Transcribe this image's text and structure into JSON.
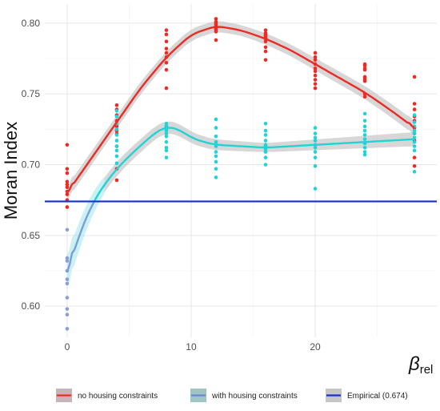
{
  "chart_data": {
    "type": "scatter",
    "title": "",
    "ylabel": "Moran Index",
    "xlabel_main": "β",
    "xlabel_sub": "rel",
    "xlim": [
      -1.8,
      29.8
    ],
    "ylim": [
      0.578,
      0.8135
    ],
    "x_ticks": [
      0,
      10,
      20
    ],
    "x_tick_labels": [
      "0",
      "10",
      "20"
    ],
    "y_ticks": [
      0.6,
      0.65,
      0.7,
      0.75,
      0.8
    ],
    "y_tick_labels": [
      "0.60",
      "0.65",
      "0.70",
      "0.75",
      "0.80"
    ],
    "grid": true,
    "legend_position": "bottom",
    "series": [
      {
        "name": "no housing constraints",
        "point_color": "#ee2a24",
        "line_color": "#ee2a24",
        "legend_swatch": "#c8b4b8",
        "points": [
          [
            0,
            0.714
          ],
          [
            0,
            0.697
          ],
          [
            0,
            0.694
          ],
          [
            0,
            0.688
          ],
          [
            0,
            0.686
          ],
          [
            0,
            0.684
          ],
          [
            0,
            0.681
          ],
          [
            0,
            0.679
          ],
          [
            0,
            0.675
          ],
          [
            0,
            0.67
          ],
          [
            4,
            0.742
          ],
          [
            4,
            0.739
          ],
          [
            4,
            0.735
          ],
          [
            4,
            0.731
          ],
          [
            4,
            0.727
          ],
          [
            4,
            0.724
          ],
          [
            4,
            0.722
          ],
          [
            4,
            0.713
          ],
          [
            4,
            0.697
          ],
          [
            4,
            0.689
          ],
          [
            8,
            0.795
          ],
          [
            8,
            0.792
          ],
          [
            8,
            0.787
          ],
          [
            8,
            0.782
          ],
          [
            8,
            0.779
          ],
          [
            8,
            0.776
          ],
          [
            8,
            0.772
          ],
          [
            8,
            0.767
          ],
          [
            8,
            0.754
          ],
          [
            8,
            0.727
          ],
          [
            12,
            0.803
          ],
          [
            12,
            0.801
          ],
          [
            12,
            0.8
          ],
          [
            12,
            0.799
          ],
          [
            12,
            0.798
          ],
          [
            12,
            0.797
          ],
          [
            12,
            0.796
          ],
          [
            12,
            0.795
          ],
          [
            12,
            0.794
          ],
          [
            12,
            0.788
          ],
          [
            16,
            0.795
          ],
          [
            16,
            0.793
          ],
          [
            16,
            0.792
          ],
          [
            16,
            0.791
          ],
          [
            16,
            0.79
          ],
          [
            16,
            0.789
          ],
          [
            16,
            0.787
          ],
          [
            16,
            0.783
          ],
          [
            16,
            0.78
          ],
          [
            16,
            0.774
          ],
          [
            20,
            0.779
          ],
          [
            20,
            0.776
          ],
          [
            20,
            0.774
          ],
          [
            20,
            0.771
          ],
          [
            20,
            0.768
          ],
          [
            20,
            0.766
          ],
          [
            20,
            0.763
          ],
          [
            20,
            0.76
          ],
          [
            20,
            0.757
          ],
          [
            20,
            0.754
          ],
          [
            24,
            0.771
          ],
          [
            24,
            0.77
          ],
          [
            24,
            0.768
          ],
          [
            24,
            0.767
          ],
          [
            24,
            0.762
          ],
          [
            24,
            0.761
          ],
          [
            24,
            0.76
          ],
          [
            24,
            0.759
          ],
          [
            24,
            0.75
          ],
          [
            24,
            0.748
          ],
          [
            28,
            0.762
          ],
          [
            28,
            0.743
          ],
          [
            28,
            0.739
          ],
          [
            28,
            0.734
          ],
          [
            28,
            0.731
          ],
          [
            28,
            0.726
          ],
          [
            28,
            0.722
          ],
          [
            28,
            0.717
          ],
          [
            28,
            0.705
          ],
          [
            28,
            0.699
          ]
        ],
        "smooth": [
          [
            0,
            0.68
          ],
          [
            2,
            0.705
          ],
          [
            4,
            0.73
          ],
          [
            6,
            0.755
          ],
          [
            8,
            0.776
          ],
          [
            10,
            0.792
          ],
          [
            12,
            0.798
          ],
          [
            14,
            0.795
          ],
          [
            16,
            0.789
          ],
          [
            18,
            0.781
          ],
          [
            20,
            0.771
          ],
          [
            22,
            0.761
          ],
          [
            24,
            0.751
          ],
          [
            26,
            0.739
          ],
          [
            28,
            0.726
          ]
        ]
      },
      {
        "name": "with housing constraints",
        "point_color": "#22d3d6",
        "line_color": "#22d3d6",
        "low_point_color": "#8a9fd6",
        "low_line_color": "#7f9cd8",
        "legend_swatch": "#9ec4c4",
        "points": [
          [
            0,
            0.654
          ],
          [
            0,
            0.634
          ],
          [
            0,
            0.632
          ],
          [
            0,
            0.625
          ],
          [
            0,
            0.619
          ],
          [
            0,
            0.616
          ],
          [
            0,
            0.606
          ],
          [
            0,
            0.598
          ],
          [
            0,
            0.594
          ],
          [
            0,
            0.584
          ],
          [
            4,
            0.738
          ],
          [
            4,
            0.734
          ],
          [
            4,
            0.729
          ],
          [
            4,
            0.725
          ],
          [
            4,
            0.721
          ],
          [
            4,
            0.717
          ],
          [
            4,
            0.713
          ],
          [
            4,
            0.71
          ],
          [
            4,
            0.706
          ],
          [
            4,
            0.701
          ],
          [
            8,
            0.729
          ],
          [
            8,
            0.727
          ],
          [
            8,
            0.725
          ],
          [
            8,
            0.724
          ],
          [
            8,
            0.722
          ],
          [
            8,
            0.72
          ],
          [
            8,
            0.716
          ],
          [
            8,
            0.712
          ],
          [
            8,
            0.71
          ],
          [
            8,
            0.705
          ],
          [
            12,
            0.732
          ],
          [
            12,
            0.726
          ],
          [
            12,
            0.72
          ],
          [
            12,
            0.716
          ],
          [
            12,
            0.713
          ],
          [
            12,
            0.709
          ],
          [
            12,
            0.706
          ],
          [
            12,
            0.702
          ],
          [
            12,
            0.697
          ],
          [
            12,
            0.691
          ],
          [
            16,
            0.729
          ],
          [
            16,
            0.724
          ],
          [
            16,
            0.721
          ],
          [
            16,
            0.717
          ],
          [
            16,
            0.714
          ],
          [
            16,
            0.713
          ],
          [
            16,
            0.711
          ],
          [
            16,
            0.709
          ],
          [
            16,
            0.705
          ],
          [
            16,
            0.7
          ],
          [
            20,
            0.726
          ],
          [
            20,
            0.722
          ],
          [
            20,
            0.719
          ],
          [
            20,
            0.717
          ],
          [
            20,
            0.714
          ],
          [
            20,
            0.712
          ],
          [
            20,
            0.709
          ],
          [
            20,
            0.705
          ],
          [
            20,
            0.699
          ],
          [
            20,
            0.683
          ],
          [
            24,
            0.736
          ],
          [
            24,
            0.731
          ],
          [
            24,
            0.727
          ],
          [
            24,
            0.724
          ],
          [
            24,
            0.721
          ],
          [
            24,
            0.718
          ],
          [
            24,
            0.715
          ],
          [
            24,
            0.712
          ],
          [
            24,
            0.709
          ],
          [
            24,
            0.707
          ],
          [
            28,
            0.735
          ],
          [
            28,
            0.73
          ],
          [
            28,
            0.727
          ],
          [
            28,
            0.724
          ],
          [
            28,
            0.722
          ],
          [
            28,
            0.719
          ],
          [
            28,
            0.716
          ],
          [
            28,
            0.713
          ],
          [
            28,
            0.71
          ],
          [
            28,
            0.695
          ]
        ],
        "smooth": [
          [
            0,
            0.624
          ],
          [
            1,
            0.651
          ],
          [
            2,
            0.672
          ],
          [
            3,
            0.686
          ],
          [
            4,
            0.697
          ],
          [
            5,
            0.706
          ],
          [
            6,
            0.714
          ],
          [
            7,
            0.722
          ],
          [
            8,
            0.727
          ],
          [
            9,
            0.725
          ],
          [
            10,
            0.719
          ],
          [
            11,
            0.716
          ],
          [
            12,
            0.714
          ],
          [
            14,
            0.713
          ],
          [
            16,
            0.712
          ],
          [
            18,
            0.713
          ],
          [
            20,
            0.714
          ],
          [
            22,
            0.715
          ],
          [
            24,
            0.716
          ],
          [
            26,
            0.717
          ],
          [
            28,
            0.718
          ]
        ]
      }
    ],
    "reference_line": {
      "name": "Empirical (0.674)",
      "value": 0.674,
      "color": "#1531d6"
    }
  }
}
